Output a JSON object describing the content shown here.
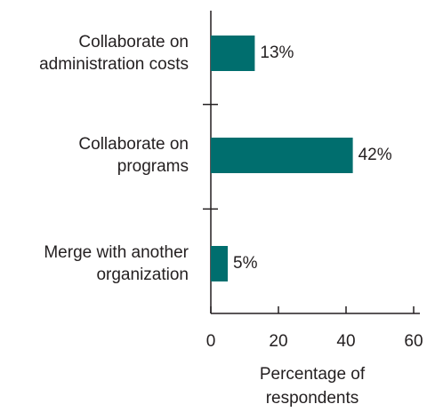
{
  "chart_data": {
    "type": "bar",
    "orientation": "horizontal",
    "categories": [
      "Collaborate on\nadministration costs",
      "Collaborate on\nprograms",
      "Merge with another\norganization"
    ],
    "values": [
      13,
      42,
      5
    ],
    "value_labels": [
      "13%",
      "42%",
      "5%"
    ],
    "color": "#006e6e",
    "x_label": "Percentage of\nrespondents",
    "xlim": [
      0,
      60
    ],
    "xticks": [
      0,
      20,
      40,
      60
    ],
    "grid": false
  }
}
